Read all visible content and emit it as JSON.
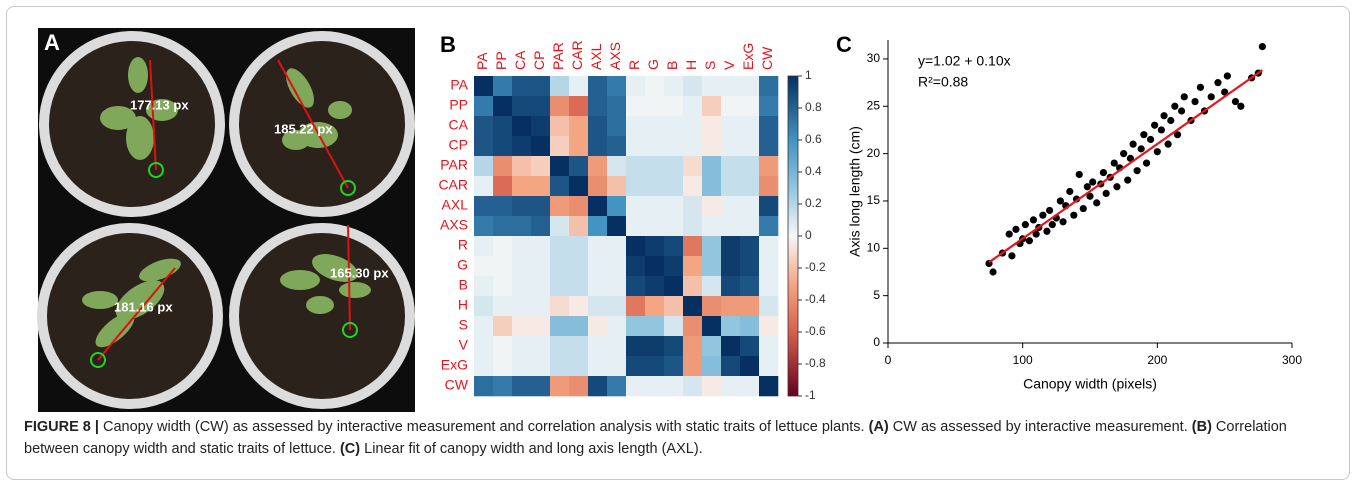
{
  "panel_a": {
    "panel_label": "A",
    "labels": [
      "177.13 px",
      "185.22 px",
      "181.16 px",
      "165.30 px"
    ]
  },
  "chart_data": [
    {
      "type": "heatmap",
      "panel_label": "B",
      "colormap": "RdBu",
      "variables": [
        "PA",
        "PP",
        "CA",
        "CP",
        "PAR",
        "CAR",
        "AXL",
        "AXS",
        "R",
        "G",
        "B",
        "H",
        "S",
        "V",
        "ExG",
        "CW"
      ],
      "matrix": [
        [
          1,
          0.7,
          0.85,
          0.85,
          0.2,
          0.05,
          0.8,
          0.7,
          0.05,
          0.02,
          0.05,
          0.1,
          0.05,
          0.05,
          0.05,
          0.75
        ],
        [
          0.7,
          1,
          0.9,
          0.9,
          -0.4,
          -0.55,
          0.8,
          0.75,
          0.02,
          0.02,
          0.02,
          0.05,
          -0.15,
          0.02,
          0.02,
          0.7
        ],
        [
          0.85,
          0.9,
          1,
          0.95,
          -0.2,
          -0.3,
          0.85,
          0.75,
          0.05,
          0.05,
          0.05,
          0.05,
          -0.05,
          0.05,
          0.05,
          0.8
        ],
        [
          0.85,
          0.9,
          0.95,
          1,
          -0.15,
          -0.3,
          0.85,
          0.8,
          0.05,
          0.05,
          0.05,
          0.05,
          -0.05,
          0.05,
          0.05,
          0.8
        ],
        [
          0.2,
          -0.4,
          -0.2,
          -0.15,
          1,
          0.85,
          -0.35,
          0.1,
          0.15,
          0.15,
          0.15,
          -0.1,
          0.35,
          0.15,
          0.15,
          -0.35
        ],
        [
          0.05,
          -0.55,
          -0.3,
          -0.3,
          0.85,
          1,
          -0.4,
          -0.2,
          0.15,
          0.15,
          0.15,
          -0.05,
          0.35,
          0.15,
          0.15,
          -0.4
        ],
        [
          0.8,
          0.8,
          0.85,
          0.85,
          -0.35,
          -0.4,
          1,
          0.6,
          0.05,
          0.05,
          0.05,
          0.1,
          -0.05,
          0.05,
          0.05,
          0.9
        ],
        [
          0.7,
          0.75,
          0.75,
          0.8,
          0.1,
          -0.2,
          0.6,
          1,
          0.05,
          0.05,
          0.05,
          0.1,
          0.05,
          0.05,
          0.05,
          0.7
        ],
        [
          0.05,
          0.02,
          0.05,
          0.05,
          0.15,
          0.15,
          0.05,
          0.05,
          1,
          0.95,
          0.9,
          -0.5,
          0.3,
          0.95,
          0.9,
          0.05
        ],
        [
          0.02,
          0.02,
          0.05,
          0.05,
          0.15,
          0.15,
          0.05,
          0.05,
          0.95,
          1,
          0.95,
          -0.3,
          0.3,
          0.95,
          0.9,
          0.05
        ],
        [
          0.05,
          0.02,
          0.05,
          0.05,
          0.15,
          0.15,
          0.05,
          0.05,
          0.9,
          0.95,
          1,
          -0.2,
          0.1,
          0.9,
          0.85,
          0.05
        ],
        [
          0.1,
          0.05,
          0.05,
          0.05,
          -0.1,
          -0.05,
          0.1,
          0.1,
          -0.5,
          -0.3,
          -0.2,
          1,
          -0.4,
          -0.35,
          -0.35,
          0.1
        ],
        [
          0.05,
          -0.15,
          -0.05,
          -0.05,
          0.35,
          0.35,
          -0.05,
          0.05,
          0.3,
          0.3,
          0.1,
          -0.4,
          1,
          0.3,
          0.35,
          -0.05
        ],
        [
          0.05,
          0.02,
          0.05,
          0.05,
          0.15,
          0.15,
          0.05,
          0.05,
          0.95,
          0.95,
          0.9,
          -0.35,
          0.3,
          1,
          0.9,
          0.05
        ],
        [
          0.05,
          0.02,
          0.05,
          0.05,
          0.15,
          0.15,
          0.05,
          0.05,
          0.9,
          0.9,
          0.85,
          -0.35,
          0.35,
          0.9,
          1,
          0.05
        ],
        [
          0.75,
          0.7,
          0.8,
          0.8,
          -0.35,
          -0.4,
          0.9,
          0.7,
          0.05,
          0.05,
          0.05,
          0.1,
          -0.05,
          0.05,
          0.05,
          1
        ]
      ],
      "clim": [
        -1,
        1
      ],
      "cticks": [
        1,
        0.8,
        0.6,
        0.4,
        0.2,
        0,
        -0.2,
        -0.4,
        -0.6,
        -0.8,
        -1
      ]
    },
    {
      "type": "scatter",
      "panel_label": "C",
      "x_label": "Canopy width (pixels)",
      "y_label": "Axis long length (cm)",
      "equation": "y=1.02 + 0.10x",
      "r_squared": "R²=0.88",
      "xlim": [
        0,
        300
      ],
      "xticks": [
        0,
        100,
        200,
        300
      ],
      "ylim": [
        0,
        32
      ],
      "yticks": [
        0,
        5,
        10,
        15,
        20,
        25,
        30
      ],
      "fit": {
        "intercept": 1.02,
        "slope": 0.1,
        "x_range": [
          75,
          278
        ],
        "color": "#e8141b"
      },
      "series": [
        {
          "color": "#000000",
          "x": [
            75,
            78,
            85,
            90,
            92,
            95,
            98,
            100,
            102,
            105,
            108,
            110,
            112,
            115,
            118,
            120,
            122,
            125,
            128,
            130,
            132,
            135,
            138,
            140,
            142,
            145,
            148,
            150,
            152,
            155,
            158,
            160,
            162,
            165,
            168,
            170,
            172,
            175,
            178,
            180,
            182,
            185,
            188,
            190,
            192,
            195,
            198,
            200,
            203,
            205,
            208,
            210,
            213,
            215,
            218,
            220,
            225,
            228,
            232,
            235,
            240,
            245,
            250,
            252,
            258,
            262,
            270,
            275,
            278
          ],
          "y": [
            8.4,
            7.5,
            9.5,
            11.5,
            9.2,
            12,
            10.5,
            11,
            12.5,
            10.8,
            13,
            11.5,
            12.2,
            13.5,
            11.8,
            14,
            12.5,
            13.2,
            15,
            12.8,
            14.5,
            16,
            13.5,
            15.2,
            17.8,
            14.2,
            16.5,
            15.5,
            17,
            14.8,
            16.8,
            18,
            15.8,
            17.5,
            19,
            16.5,
            18.5,
            20,
            17.2,
            19.5,
            21,
            18.2,
            20.5,
            22,
            19,
            21.5,
            23,
            20.2,
            22.5,
            24,
            21,
            23.5,
            25,
            22,
            24.5,
            26,
            23.5,
            25.5,
            27,
            24.5,
            26,
            27.5,
            26.5,
            28.2,
            25.5,
            25,
            28,
            28.5,
            31.3
          ]
        }
      ]
    }
  ],
  "caption": {
    "runs": [
      {
        "text": "FIGURE 8 |",
        "bold": true
      },
      {
        "text": " Canopy width (CW) as assessed by interactive measurement and correlation analysis with static traits of lettuce plants. ",
        "bold": false
      },
      {
        "text": "(A)",
        "bold": true
      },
      {
        "text": " CW as assessed by interactive measurement. ",
        "bold": false
      },
      {
        "text": "(B)",
        "bold": true
      },
      {
        "text": " Correlation between canopy width and static traits of lettuce. ",
        "bold": false
      },
      {
        "text": "(C)",
        "bold": true
      },
      {
        "text": " Linear fit of canopy width and long axis length (AXL).",
        "bold": false
      }
    ]
  }
}
